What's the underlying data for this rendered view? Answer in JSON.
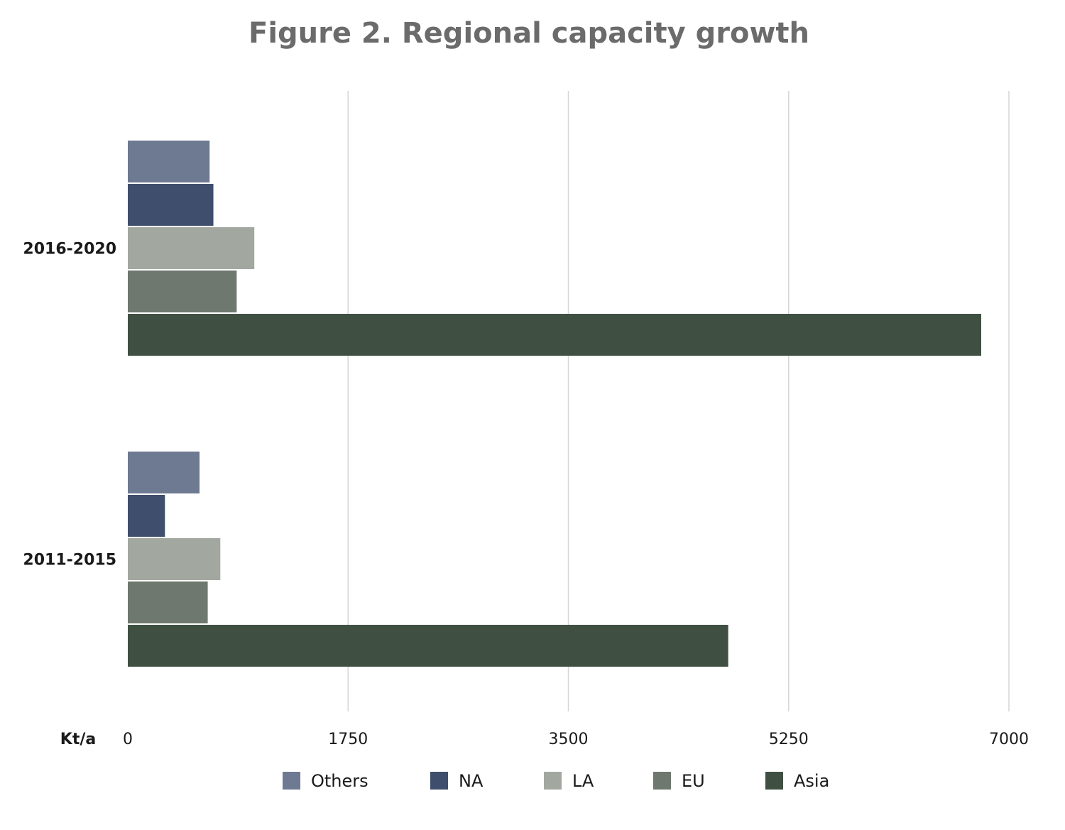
{
  "chart_data": {
    "type": "bar",
    "orientation": "horizontal",
    "title": "Figure 2. Regional capacity growth",
    "unit_label": "Kt/a",
    "categories": [
      "2016-2020",
      "2011-2015"
    ],
    "series": [
      {
        "name": "Others",
        "color": "#6e7a92",
        "values": [
          650,
          570
        ]
      },
      {
        "name": "NA",
        "color": "#3e4e6c",
        "values": [
          680,
          295
        ]
      },
      {
        "name": "LA",
        "color": "#a2a8a0",
        "values": [
          1005,
          735
        ]
      },
      {
        "name": "EU",
        "color": "#6e786e",
        "values": [
          865,
          635
        ]
      },
      {
        "name": "Asia",
        "color": "#3f5042",
        "values": [
          6780,
          4770
        ]
      }
    ],
    "xlim": [
      0,
      7000
    ],
    "xticks": [
      "0",
      "1750",
      "3500",
      "5250",
      "7000"
    ],
    "grid": true,
    "legend_position": "bottom"
  }
}
